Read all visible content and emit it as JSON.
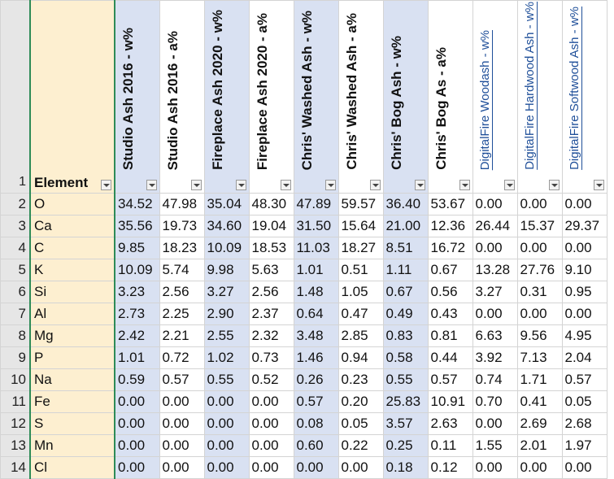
{
  "header_row_number": "1",
  "element_header": "Element",
  "columns": [
    {
      "label": "Studio Ash 2016 - w%",
      "style": "blue"
    },
    {
      "label": "Studio Ash 2016 - a%",
      "style": "white"
    },
    {
      "label": "Fireplace Ash 2020 - w%",
      "style": "blue"
    },
    {
      "label": "Fireplace Ash 2020 - a%",
      "style": "white"
    },
    {
      "label": "Chris' Washed Ash - w%",
      "style": "blue"
    },
    {
      "label": "Chris' Washed Ash - a%",
      "style": "white"
    },
    {
      "label": "Chris' Bog Ash - w%",
      "style": "blue"
    },
    {
      "label": "Chris' Bog As - a%",
      "style": "white"
    },
    {
      "label": "DigitalFire Woodash - w%",
      "style": "link"
    },
    {
      "label": "DigitalFire Hardwood Ash - w%",
      "style": "link"
    },
    {
      "label": "DigitalFire Softwood Ash - w%",
      "style": "link"
    }
  ],
  "rows": [
    {
      "num": "2",
      "element": "O",
      "values": [
        "34.52",
        "47.98",
        "35.04",
        "48.30",
        "47.89",
        "59.57",
        "36.40",
        "53.67",
        "0.00",
        "0.00",
        "0.00"
      ]
    },
    {
      "num": "3",
      "element": "Ca",
      "values": [
        "35.56",
        "19.73",
        "34.60",
        "19.04",
        "31.50",
        "15.64",
        "21.00",
        "12.36",
        "26.44",
        "15.37",
        "29.37"
      ]
    },
    {
      "num": "4",
      "element": "C",
      "values": [
        "9.85",
        "18.23",
        "10.09",
        "18.53",
        "11.03",
        "18.27",
        "8.51",
        "16.72",
        "0.00",
        "0.00",
        "0.00"
      ]
    },
    {
      "num": "5",
      "element": "K",
      "values": [
        "10.09",
        "5.74",
        "9.98",
        "5.63",
        "1.01",
        "0.51",
        "1.11",
        "0.67",
        "13.28",
        "27.76",
        "9.10"
      ]
    },
    {
      "num": "6",
      "element": "Si",
      "values": [
        "3.23",
        "2.56",
        "3.27",
        "2.56",
        "1.48",
        "1.05",
        "0.67",
        "0.56",
        "3.27",
        "0.31",
        "0.95"
      ]
    },
    {
      "num": "7",
      "element": "Al",
      "values": [
        "2.73",
        "2.25",
        "2.90",
        "2.37",
        "0.64",
        "0.47",
        "0.49",
        "0.43",
        "0.00",
        "0.00",
        "0.00"
      ]
    },
    {
      "num": "8",
      "element": "Mg",
      "values": [
        "2.42",
        "2.21",
        "2.55",
        "2.32",
        "3.48",
        "2.85",
        "0.83",
        "0.81",
        "6.63",
        "9.56",
        "4.95"
      ]
    },
    {
      "num": "9",
      "element": "P",
      "values": [
        "1.01",
        "0.72",
        "1.02",
        "0.73",
        "1.46",
        "0.94",
        "0.58",
        "0.44",
        "3.92",
        "7.13",
        "2.04"
      ]
    },
    {
      "num": "10",
      "element": "Na",
      "values": [
        "0.59",
        "0.57",
        "0.55",
        "0.52",
        "0.26",
        "0.23",
        "0.55",
        "0.57",
        "0.74",
        "1.71",
        "0.57"
      ]
    },
    {
      "num": "11",
      "element": "Fe",
      "values": [
        "0.00",
        "0.00",
        "0.00",
        "0.00",
        "0.57",
        "0.20",
        "25.83",
        "10.91",
        "0.70",
        "0.41",
        "0.05"
      ]
    },
    {
      "num": "12",
      "element": "S",
      "values": [
        "0.00",
        "0.00",
        "0.00",
        "0.00",
        "0.08",
        "0.05",
        "3.57",
        "2.63",
        "0.00",
        "2.69",
        "2.68"
      ]
    },
    {
      "num": "13",
      "element": "Mn",
      "values": [
        "0.00",
        "0.00",
        "0.00",
        "0.00",
        "0.60",
        "0.22",
        "0.25",
        "0.11",
        "1.55",
        "2.01",
        "1.97"
      ]
    },
    {
      "num": "14",
      "element": "Cl",
      "values": [
        "0.00",
        "0.00",
        "0.00",
        "0.00",
        "0.00",
        "0.00",
        "0.18",
        "0.12",
        "0.00",
        "0.00",
        "0.00"
      ]
    }
  ]
}
